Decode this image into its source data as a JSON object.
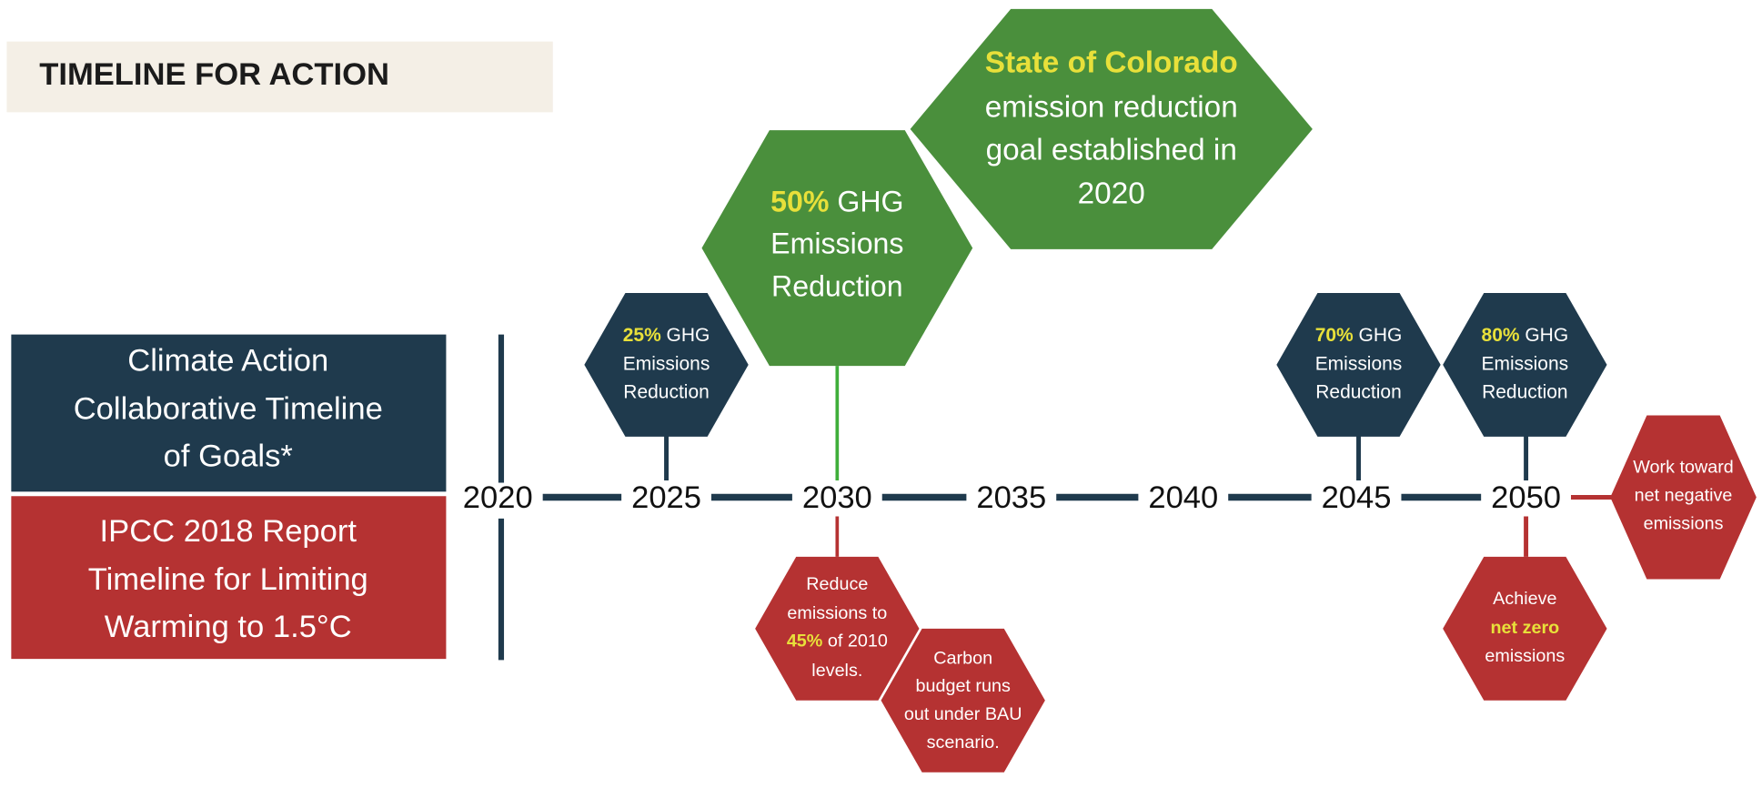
{
  "header": {
    "title": "TIMELINE FOR ACTION"
  },
  "legend": [
    {
      "lines": [
        "Climate Action",
        "Collaborative Timeline",
        "of Goals*"
      ],
      "color": "#1f3a4d"
    },
    {
      "lines": [
        "IPCC 2018 Report",
        "Timeline for Limiting",
        "Warming to 1.5°C"
      ],
      "color": "#b53232"
    }
  ],
  "timeline": {
    "years": [
      "2020",
      "2025",
      "2030",
      "2035",
      "2040",
      "2045",
      "2050"
    ]
  },
  "hexagons": [
    {
      "color": "#1f3a4d",
      "lines": [
        [
          {
            "text": "25%",
            "color": "#e8e03a"
          },
          {
            "text": " GHG"
          }
        ],
        "Emissions",
        "Reduction"
      ]
    },
    {
      "color": "#4a8f3c",
      "lines": [
        [
          {
            "text": "50%",
            "color": "#e8e03a"
          },
          {
            "text": " GHG"
          }
        ],
        "Emissions",
        "Reduction"
      ]
    },
    {
      "color": "#4a8f3c",
      "lines": [
        [
          {
            "text": "State of Colorado",
            "color": "#e8e03a"
          }
        ],
        "emission reduction",
        "goal established in",
        "2020"
      ]
    },
    {
      "color": "#1f3a4d",
      "lines": [
        [
          {
            "text": "70%",
            "color": "#e8e03a"
          },
          {
            "text": " GHG"
          }
        ],
        "Emissions",
        "Reduction"
      ]
    },
    {
      "color": "#1f3a4d",
      "lines": [
        [
          {
            "text": "80%",
            "color": "#e8e03a"
          },
          {
            "text": " GHG"
          }
        ],
        "Emissions",
        "Reduction"
      ]
    },
    {
      "color": "#b53232",
      "lines": [
        "Reduce",
        "emissions to",
        [
          {
            "text": "45%",
            "color": "#e8e03a"
          },
          {
            "text": " of 2010"
          }
        ],
        "levels."
      ]
    },
    {
      "color": "#b53232",
      "lines": [
        "Carbon",
        "budget runs",
        "out under BAU",
        "scenario."
      ]
    },
    {
      "color": "#b53232",
      "lines": [
        "Achieve",
        [
          {
            "text": "net zero",
            "color": "#e8e03a"
          }
        ],
        "emissions"
      ]
    },
    {
      "color": "#b53232",
      "lines": [
        "Work toward",
        "net negative",
        "emissions"
      ]
    }
  ]
}
